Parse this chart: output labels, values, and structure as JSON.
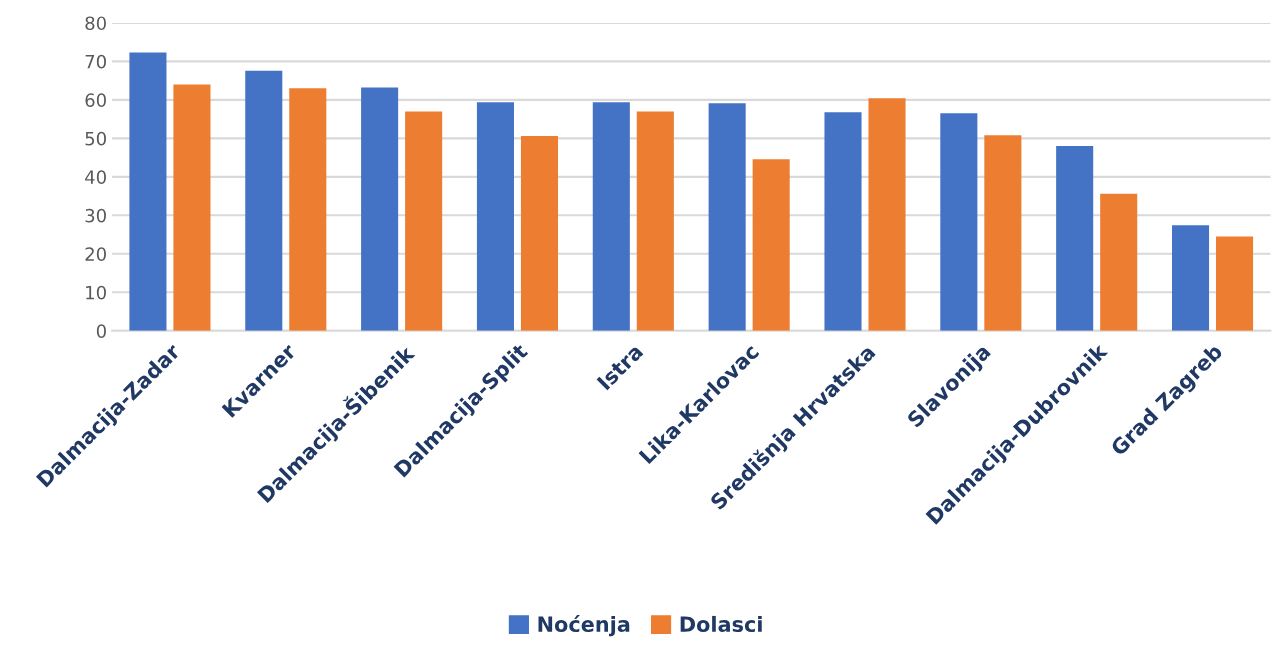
{
  "chart_data": {
    "type": "bar",
    "categories": [
      "Dalmacija-Zadar",
      "Kvarner",
      "Dalmacija-Šibenik",
      "Dalmacija-Split",
      "Istra",
      "Lika-Karlovac",
      "Središnja Hrvatska",
      "Slavonija",
      "Dalmacija-Dubrovnik",
      "Grad Zagreb"
    ],
    "series": [
      {
        "name": "Noćenja",
        "color": "#4472c4",
        "values": [
          72.3,
          67.6,
          63.2,
          59.4,
          59.4,
          59.1,
          56.8,
          56.5,
          48.0,
          27.4
        ]
      },
      {
        "name": "Dolasci",
        "color": "#ed7d31",
        "values": [
          64.0,
          63.0,
          57.0,
          50.6,
          57.0,
          44.6,
          60.4,
          50.8,
          35.6,
          24.5
        ]
      }
    ],
    "ylim": [
      0,
      80
    ],
    "yticks": [
      0,
      10,
      20,
      30,
      40,
      50,
      60,
      70,
      80
    ],
    "grid": "y",
    "legend": "bottom"
  }
}
